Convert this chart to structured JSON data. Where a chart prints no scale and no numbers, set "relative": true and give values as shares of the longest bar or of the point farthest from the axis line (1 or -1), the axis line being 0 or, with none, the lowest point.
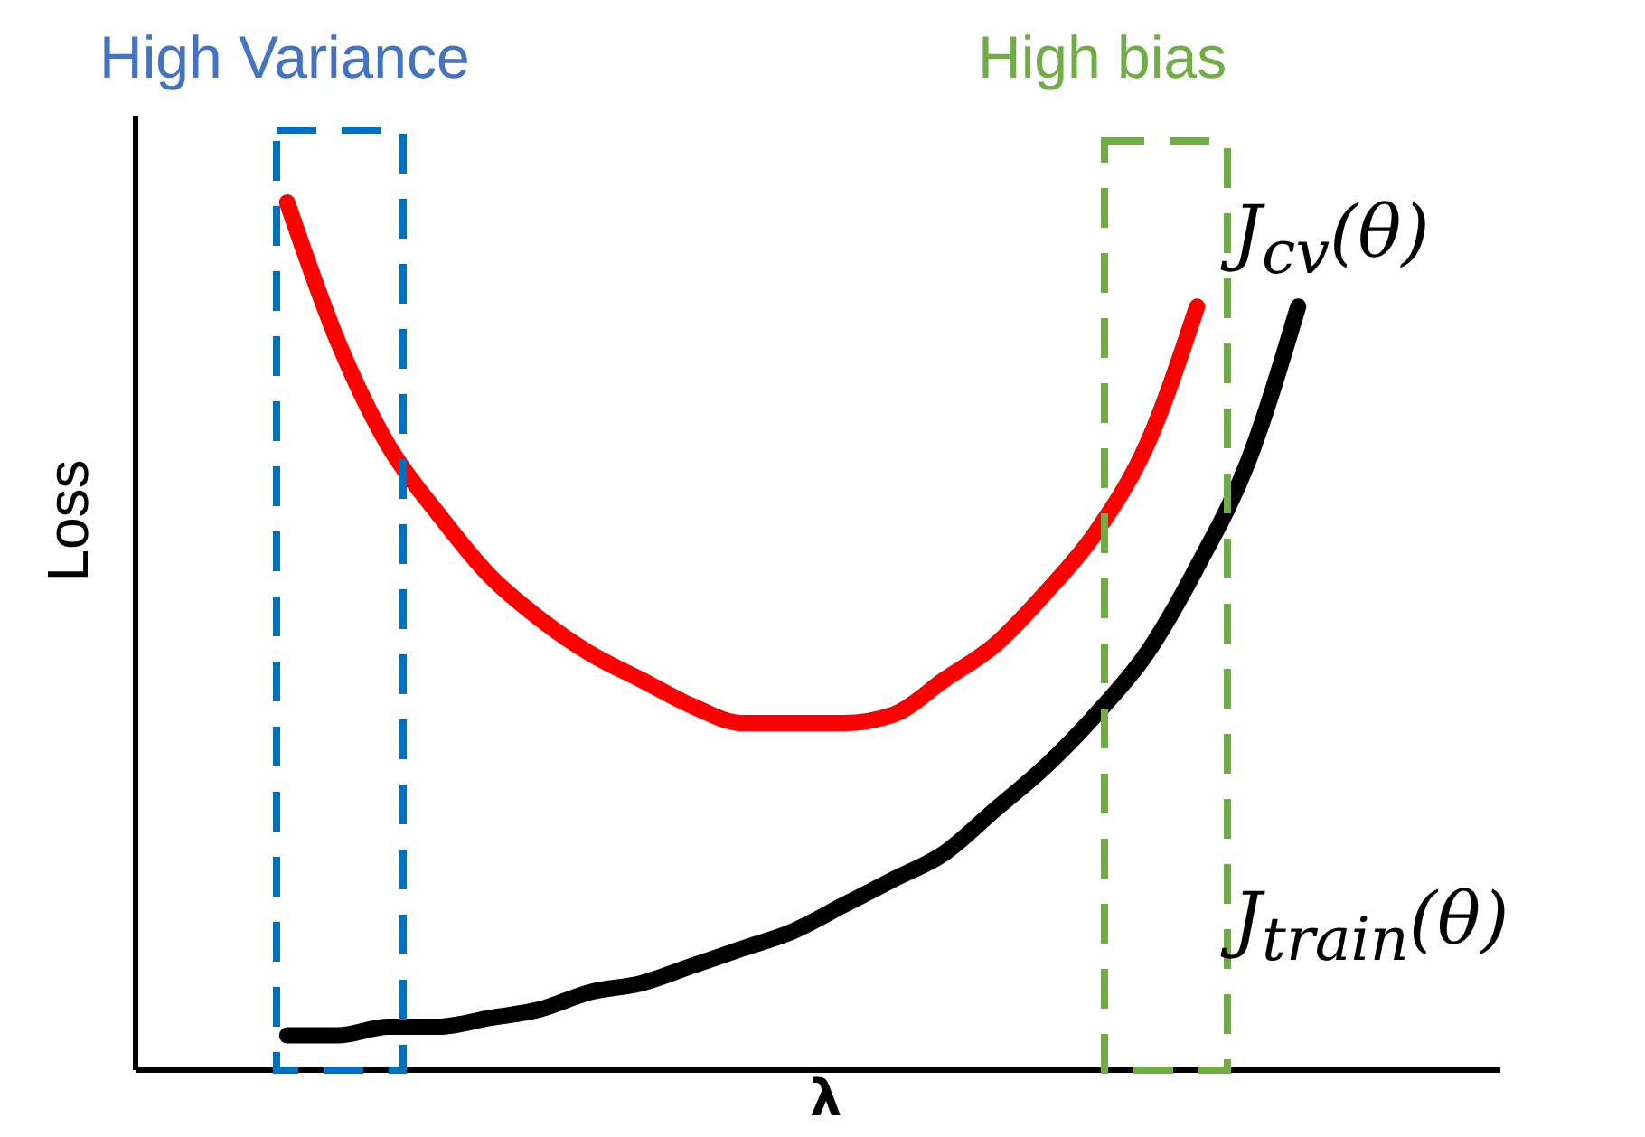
{
  "chart_data": {
    "type": "line",
    "relative": true,
    "xlabel": "λ",
    "ylabel": "Loss",
    "categories": [
      null,
      null,
      null,
      null,
      null,
      null,
      null,
      null,
      null,
      null,
      null,
      null,
      null,
      null,
      null,
      null,
      null,
      null,
      null,
      null,
      null,
      null,
      null,
      null,
      null,
      null,
      null,
      null
    ],
    "series": [
      {
        "name": "J$_{cv}$(θ)",
        "color": "#ff0000",
        "values": [
          null,
          null,
          null,
          1.0,
          0.84,
          0.72,
          0.64,
          0.57,
          0.52,
          0.48,
          0.45,
          0.42,
          0.4,
          0.4,
          0.4,
          0.41,
          0.45,
          0.49,
          0.55,
          0.62,
          0.72,
          0.88,
          null,
          null,
          null,
          null,
          null,
          null
        ]
      },
      {
        "name": "J$_{train}$(θ)",
        "color": "#000000",
        "values": [
          null,
          null,
          null,
          0.04,
          0.04,
          0.05,
          0.05,
          0.06,
          0.07,
          0.09,
          0.1,
          0.12,
          0.14,
          0.16,
          0.19,
          0.22,
          0.25,
          0.3,
          0.35,
          0.41,
          0.48,
          0.58,
          0.7,
          0.88,
          null,
          null,
          null,
          null
        ]
      }
    ],
    "annotations": [
      "High Variance",
      "High bias"
    ]
  }
}
